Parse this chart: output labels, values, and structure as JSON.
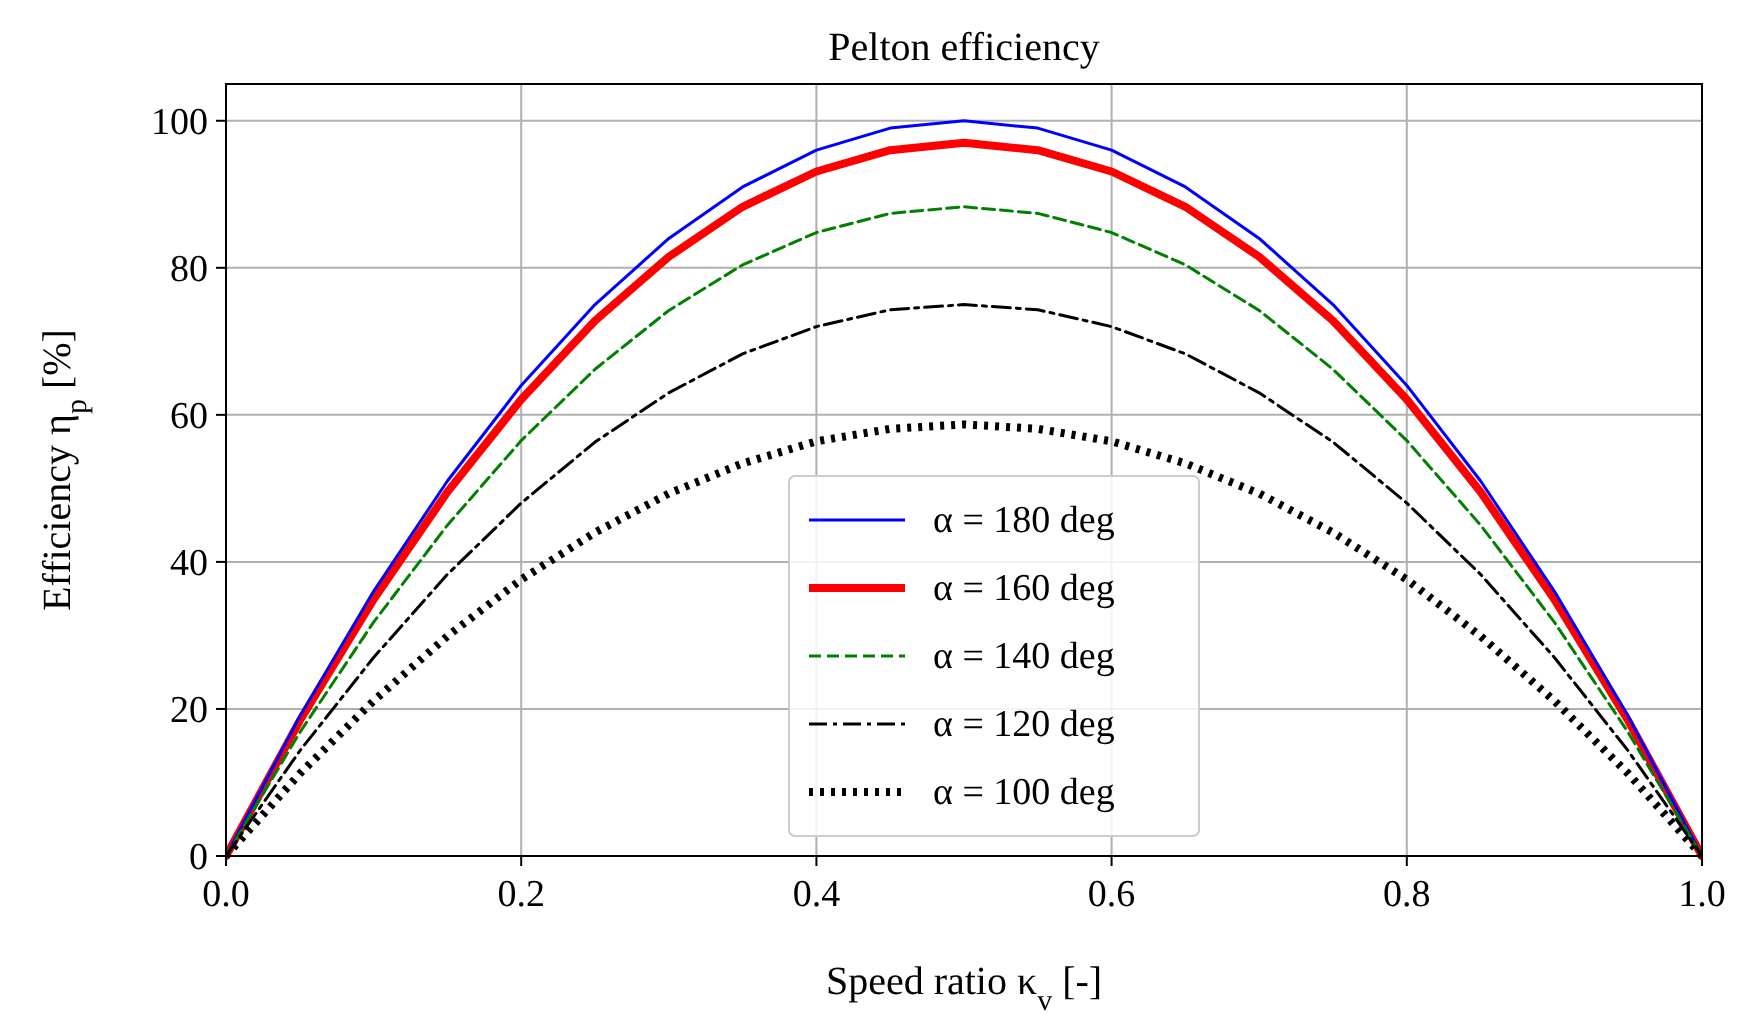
{
  "chart_data": {
    "type": "line",
    "title": "Pelton efficiency",
    "xlabel": "Speed ratio κ$_{v}$ [-]",
    "ylabel": "Efficiency η$_{p}$ [%]",
    "x": [
      0,
      0.05,
      0.1,
      0.15,
      0.2,
      0.25,
      0.3,
      0.35,
      0.4,
      0.45,
      0.5,
      0.55,
      0.6,
      0.65,
      0.7,
      0.75,
      0.8,
      0.85,
      0.9,
      0.95,
      1
    ],
    "series": [
      {
        "name": "α = 180 deg",
        "color": "#0000ff",
        "line_style": "solid",
        "values": [
          0,
          19,
          36,
          51,
          64,
          75,
          84,
          91,
          96,
          99,
          100,
          99,
          96,
          91,
          84,
          75,
          64,
          51,
          36,
          19,
          0
        ]
      },
      {
        "name": "α = 160 deg",
        "color": "#ff0000",
        "line_style": "solid",
        "values": [
          0,
          18.4,
          34.9,
          49.5,
          62.1,
          72.8,
          81.5,
          88.3,
          93.1,
          96.0,
          97.0,
          96.0,
          93.1,
          88.3,
          81.5,
          72.8,
          62.1,
          49.5,
          34.9,
          18.4,
          0
        ]
      },
      {
        "name": "α = 140 deg",
        "color": "#008000",
        "line_style": "dashed",
        "values": [
          0,
          16.8,
          31.8,
          45.0,
          56.5,
          66.2,
          74.2,
          80.4,
          84.8,
          87.4,
          88.3,
          87.4,
          84.8,
          80.4,
          74.2,
          66.2,
          56.5,
          45.0,
          31.8,
          16.8,
          0
        ]
      },
      {
        "name": "α = 120 deg",
        "color": "#000000",
        "line_style": "dashdot",
        "values": [
          0,
          14.3,
          27.0,
          38.3,
          48.0,
          56.3,
          63.0,
          68.3,
          72.0,
          74.3,
          75.0,
          74.3,
          72.0,
          68.3,
          63.0,
          56.3,
          48.0,
          38.3,
          27.0,
          14.3,
          0
        ]
      },
      {
        "name": "α = 100 deg",
        "color": "#000000",
        "line_style": "dotted",
        "values": [
          0,
          11.2,
          21.1,
          29.9,
          37.6,
          44.0,
          49.3,
          53.4,
          56.4,
          58.1,
          58.7,
          58.1,
          56.4,
          53.4,
          49.3,
          44.0,
          37.6,
          29.9,
          21.1,
          11.2,
          0
        ]
      }
    ],
    "xlim": [
      0,
      1
    ],
    "xticks": [
      {
        "value": 0,
        "label": "0.0"
      },
      {
        "value": 0.2,
        "label": "0.2"
      },
      {
        "value": 0.4,
        "label": "0.4"
      },
      {
        "value": 0.6,
        "label": "0.6"
      },
      {
        "value": 0.8,
        "label": "0.8"
      },
      {
        "value": 1,
        "label": "1.0"
      }
    ],
    "ylim": [
      0,
      105
    ],
    "yticks": [
      0,
      20,
      40,
      60,
      80,
      100
    ],
    "grid": true,
    "legend": "bottom"
  }
}
